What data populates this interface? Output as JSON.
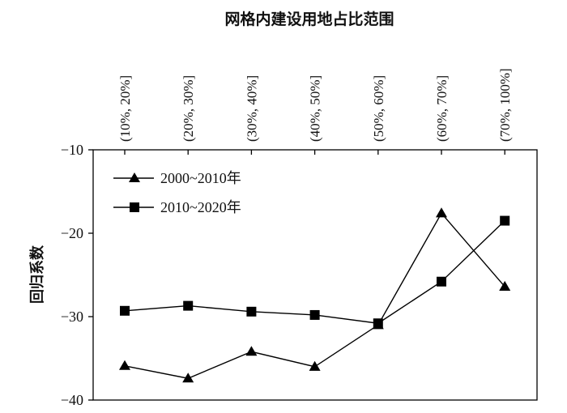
{
  "chart_data": {
    "type": "line",
    "title": "网格内建设用地占比范围",
    "xlabel": "",
    "ylabel": "回归系数",
    "categories": [
      "(10%, 20%]",
      "(20%, 30%]",
      "(30%, 40%]",
      "(40%, 50%]",
      "(50%, 60%]",
      "(60%, 70%]",
      "(70%, 100%]"
    ],
    "ylim": [
      -40,
      -10
    ],
    "yticks": [
      -10,
      -20,
      -30,
      -40
    ],
    "series": [
      {
        "name": "2000~2010年",
        "marker": "triangle",
        "values": [
          -35.9,
          -37.4,
          -34.2,
          -36.0,
          -31.0,
          -17.6,
          -26.4
        ]
      },
      {
        "name": "2010~2020年",
        "marker": "square",
        "values": [
          -29.3,
          -28.7,
          -29.4,
          -29.8,
          -30.8,
          -25.8,
          -18.5
        ]
      }
    ],
    "legend_position": "top-left",
    "grid": false,
    "x_axis_position": "top"
  }
}
